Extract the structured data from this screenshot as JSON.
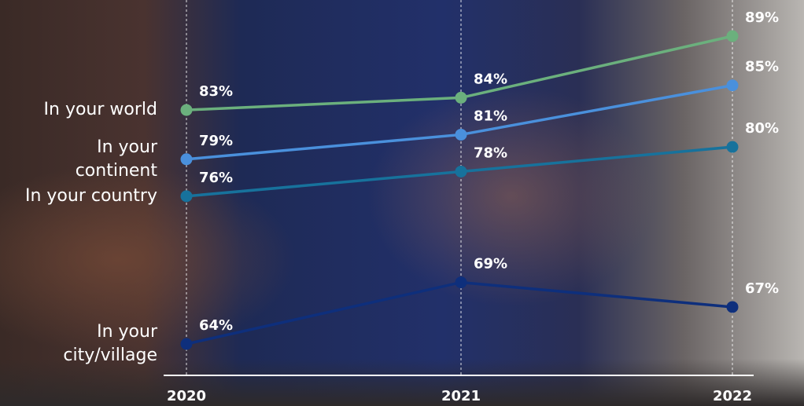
{
  "chart_data": {
    "type": "line",
    "categories": [
      "2020",
      "2021",
      "2022"
    ],
    "series": [
      {
        "name": "In your world",
        "color": "#6bb07d",
        "values": [
          83,
          84,
          89
        ],
        "value_labels": [
          "83%",
          "84%",
          "89%"
        ]
      },
      {
        "name": "In your continent",
        "color": "#4a90dc",
        "values": [
          79,
          81,
          85
        ],
        "value_labels": [
          "79%",
          "81%",
          "85%"
        ]
      },
      {
        "name": "In your country",
        "color": "#17729c",
        "values": [
          76,
          78,
          80
        ],
        "value_labels": [
          "76%",
          "78%",
          "80%"
        ]
      },
      {
        "name": "In your city/village",
        "color": "#0e2f7c",
        "values": [
          64,
          69,
          67
        ],
        "value_labels": [
          "64%",
          "69%",
          "67%"
        ]
      }
    ]
  }
}
